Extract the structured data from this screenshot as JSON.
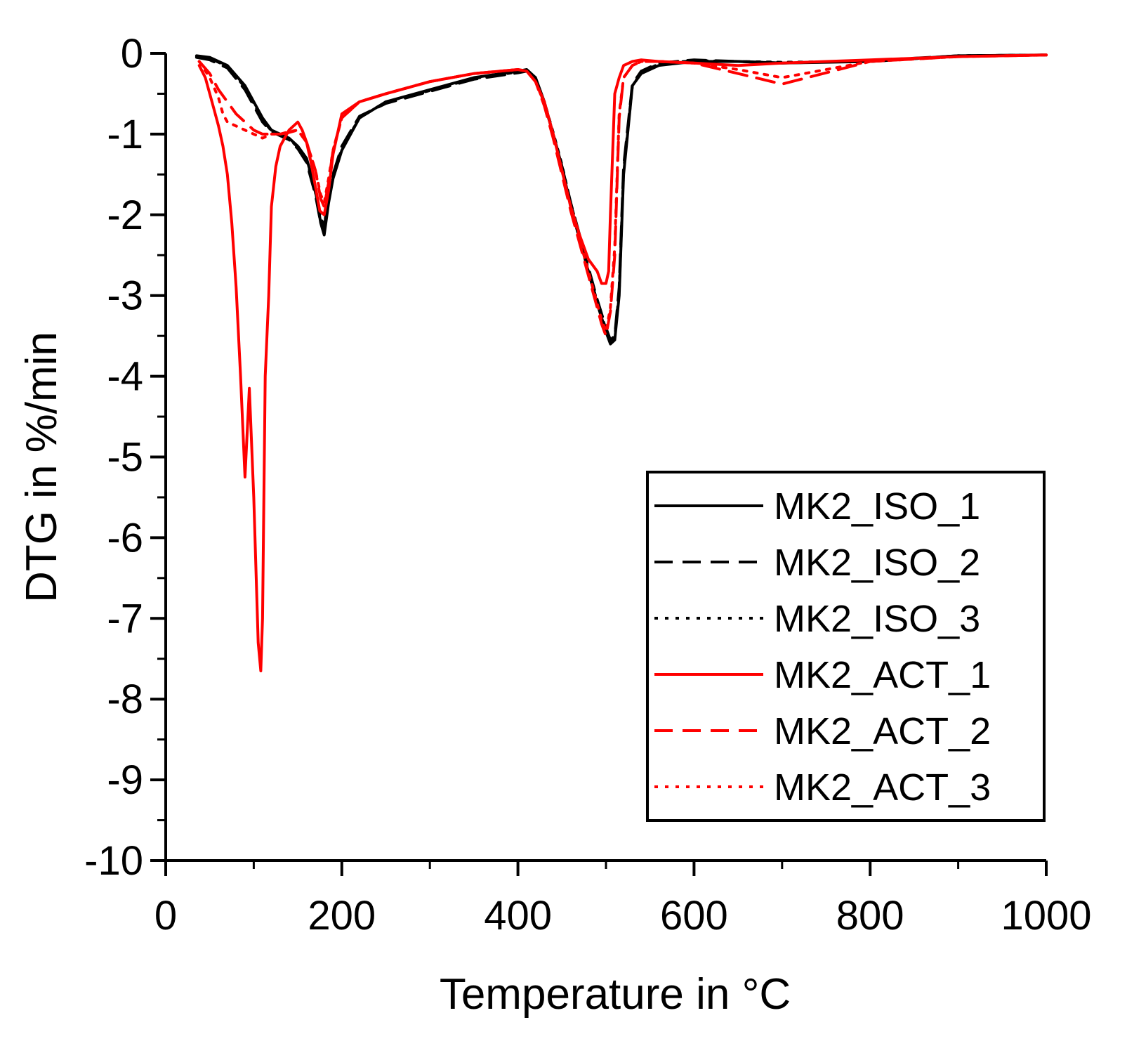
{
  "chart_data": {
    "type": "line",
    "title": "",
    "xlabel": "Temperature in °C",
    "ylabel": "DTG in %/min",
    "xlim": [
      0,
      1000
    ],
    "ylim": [
      -10,
      0
    ],
    "x_ticks": [
      0,
      200,
      400,
      600,
      800,
      1000
    ],
    "x_tick_labels": [
      "0",
      "200",
      "400",
      "600",
      "800",
      "1000"
    ],
    "y_ticks": [
      0,
      -1,
      -2,
      -3,
      -4,
      -5,
      -6,
      -7,
      -8,
      -9,
      -10
    ],
    "y_tick_labels": [
      "0",
      "-1",
      "-2",
      "-3",
      "-4",
      "-5",
      "-6",
      "-7",
      "-8",
      "-9",
      "-10"
    ],
    "grid": false,
    "legend_position": "bottom-right",
    "series": [
      {
        "name": "MK2_ISO_1",
        "color": "#000000",
        "dash": "solid",
        "x": [
          35,
          50,
          70,
          90,
          100,
          110,
          120,
          130,
          140,
          150,
          160,
          170,
          176,
          180,
          185,
          190,
          200,
          220,
          250,
          300,
          350,
          400,
          410,
          420,
          430,
          440,
          450,
          460,
          470,
          480,
          490,
          500,
          505,
          510,
          515,
          520,
          530,
          540,
          560,
          600,
          650,
          700,
          800,
          900,
          1000
        ],
        "y": [
          -0.03,
          -0.05,
          -0.15,
          -0.4,
          -0.6,
          -0.8,
          -0.95,
          -1.0,
          -1.05,
          -1.15,
          -1.3,
          -1.7,
          -2.1,
          -2.25,
          -1.85,
          -1.55,
          -1.2,
          -0.8,
          -0.6,
          -0.45,
          -0.3,
          -0.22,
          -0.2,
          -0.3,
          -0.6,
          -1.0,
          -1.4,
          -1.9,
          -2.3,
          -2.7,
          -3.1,
          -3.45,
          -3.6,
          -3.55,
          -3.0,
          -1.5,
          -0.4,
          -0.25,
          -0.15,
          -0.1,
          -0.1,
          -0.12,
          -0.1,
          -0.03,
          -0.02
        ]
      },
      {
        "name": "MK2_ISO_2",
        "color": "#000000",
        "dash": "dashed",
        "x": [
          35,
          50,
          70,
          90,
          100,
          110,
          120,
          130,
          140,
          150,
          160,
          170,
          176,
          180,
          185,
          190,
          200,
          220,
          250,
          300,
          350,
          400,
          410,
          420,
          430,
          440,
          450,
          460,
          470,
          480,
          490,
          500,
          505,
          510,
          515,
          520,
          530,
          540,
          560,
          600,
          650,
          700,
          800,
          900,
          1000
        ],
        "y": [
          -0.05,
          -0.08,
          -0.18,
          -0.45,
          -0.65,
          -0.85,
          -0.97,
          -1.02,
          -1.07,
          -1.18,
          -1.35,
          -1.75,
          -2.1,
          -2.15,
          -1.8,
          -1.5,
          -1.15,
          -0.78,
          -0.62,
          -0.47,
          -0.32,
          -0.24,
          -0.22,
          -0.32,
          -0.62,
          -1.0,
          -1.4,
          -1.85,
          -2.25,
          -2.65,
          -3.05,
          -3.4,
          -3.55,
          -3.5,
          -2.9,
          -1.4,
          -0.38,
          -0.22,
          -0.12,
          -0.08,
          -0.1,
          -0.12,
          -0.09,
          -0.03,
          -0.02
        ]
      },
      {
        "name": "MK2_ISO_3",
        "color": "#000000",
        "dash": "dotted",
        "x": [
          35,
          50,
          70,
          90,
          100,
          110,
          120,
          130,
          140,
          150,
          160,
          170,
          176,
          180,
          185,
          190,
          200,
          220,
          250,
          300,
          350,
          400,
          410,
          420,
          430,
          440,
          450,
          460,
          470,
          480,
          490,
          500,
          505,
          510,
          515,
          520,
          530,
          540,
          560,
          600,
          650,
          700,
          800,
          900,
          1000
        ],
        "y": [
          -0.04,
          -0.06,
          -0.16,
          -0.42,
          -0.62,
          -0.82,
          -0.96,
          -1.0,
          -1.06,
          -1.16,
          -1.32,
          -1.72,
          -2.05,
          -2.12,
          -1.82,
          -1.52,
          -1.18,
          -0.8,
          -0.6,
          -0.46,
          -0.31,
          -0.23,
          -0.21,
          -0.31,
          -0.6,
          -0.98,
          -1.38,
          -1.86,
          -2.26,
          -2.68,
          -3.08,
          -3.42,
          -3.56,
          -3.52,
          -2.95,
          -1.45,
          -0.4,
          -0.24,
          -0.13,
          -0.09,
          -0.1,
          -0.11,
          -0.1,
          -0.03,
          -0.02
        ]
      },
      {
        "name": "MK2_ACT_1",
        "color": "#ff0000",
        "dash": "solid",
        "x": [
          38,
          45,
          50,
          55,
          60,
          65,
          70,
          75,
          80,
          85,
          90,
          95,
          100,
          105,
          108,
          110,
          113,
          117,
          120,
          125,
          130,
          140,
          150,
          155,
          160,
          165,
          170,
          175,
          180,
          185,
          190,
          200,
          220,
          250,
          300,
          350,
          400,
          410,
          420,
          430,
          440,
          450,
          460,
          470,
          480,
          490,
          495,
          500,
          503,
          505,
          510,
          515,
          520,
          530,
          540,
          560,
          600,
          650,
          700,
          800,
          900,
          1000
        ],
        "y": [
          -0.15,
          -0.3,
          -0.5,
          -0.7,
          -0.9,
          -1.15,
          -1.5,
          -2.1,
          -2.9,
          -4.0,
          -5.25,
          -4.15,
          -5.5,
          -7.3,
          -7.65,
          -7.0,
          -4.0,
          -3.0,
          -1.9,
          -1.4,
          -1.15,
          -0.95,
          -0.85,
          -0.95,
          -1.1,
          -1.35,
          -1.65,
          -1.95,
          -2.0,
          -1.7,
          -1.25,
          -0.75,
          -0.6,
          -0.5,
          -0.35,
          -0.25,
          -0.2,
          -0.22,
          -0.35,
          -0.6,
          -1.0,
          -1.45,
          -1.9,
          -2.25,
          -2.55,
          -2.7,
          -2.85,
          -2.85,
          -2.7,
          -2.0,
          -0.5,
          -0.3,
          -0.15,
          -0.1,
          -0.08,
          -0.1,
          -0.12,
          -0.15,
          -0.12,
          -0.08,
          -0.04,
          -0.02
        ]
      },
      {
        "name": "MK2_ACT_2",
        "color": "#ff0000",
        "dash": "dashed",
        "x": [
          38,
          50,
          60,
          70,
          80,
          90,
          100,
          110,
          120,
          130,
          140,
          150,
          160,
          170,
          176,
          180,
          185,
          190,
          200,
          220,
          250,
          300,
          350,
          400,
          410,
          420,
          430,
          440,
          450,
          460,
          470,
          480,
          490,
          495,
          500,
          505,
          510,
          515,
          520,
          530,
          540,
          560,
          600,
          650,
          700,
          800,
          900,
          1000
        ],
        "y": [
          -0.1,
          -0.25,
          -0.45,
          -0.6,
          -0.75,
          -0.85,
          -0.95,
          -1.0,
          -1.0,
          -1.0,
          -0.98,
          -0.95,
          -1.1,
          -1.45,
          -1.8,
          -1.9,
          -1.6,
          -1.2,
          -0.8,
          -0.6,
          -0.5,
          -0.35,
          -0.25,
          -0.2,
          -0.22,
          -0.35,
          -0.65,
          -1.05,
          -1.5,
          -1.95,
          -2.35,
          -2.75,
          -3.15,
          -3.35,
          -3.5,
          -3.2,
          -2.5,
          -0.8,
          -0.3,
          -0.15,
          -0.1,
          -0.1,
          -0.12,
          -0.25,
          -0.38,
          -0.1,
          -0.04,
          -0.02
        ]
      },
      {
        "name": "MK2_ACT_3",
        "color": "#ff0000",
        "dash": "dotted",
        "x": [
          38,
          50,
          60,
          65,
          70,
          80,
          90,
          100,
          110,
          120,
          130,
          140,
          150,
          160,
          170,
          176,
          180,
          185,
          190,
          200,
          220,
          250,
          300,
          350,
          400,
          410,
          420,
          430,
          440,
          450,
          460,
          470,
          480,
          490,
          495,
          500,
          505,
          510,
          515,
          520,
          530,
          540,
          560,
          600,
          650,
          700,
          800,
          900,
          1000
        ],
        "y": [
          -0.1,
          -0.3,
          -0.55,
          -0.75,
          -0.85,
          -0.9,
          -0.95,
          -1.0,
          -1.05,
          -1.0,
          -1.0,
          -0.97,
          -0.95,
          -1.1,
          -1.45,
          -1.75,
          -1.85,
          -1.55,
          -1.2,
          -0.8,
          -0.6,
          -0.5,
          -0.35,
          -0.25,
          -0.2,
          -0.22,
          -0.35,
          -0.62,
          -1.0,
          -1.45,
          -1.9,
          -2.3,
          -2.7,
          -3.1,
          -3.3,
          -3.45,
          -3.15,
          -2.4,
          -0.75,
          -0.3,
          -0.15,
          -0.1,
          -0.1,
          -0.12,
          -0.2,
          -0.3,
          -0.1,
          -0.04,
          -0.02
        ]
      }
    ]
  }
}
